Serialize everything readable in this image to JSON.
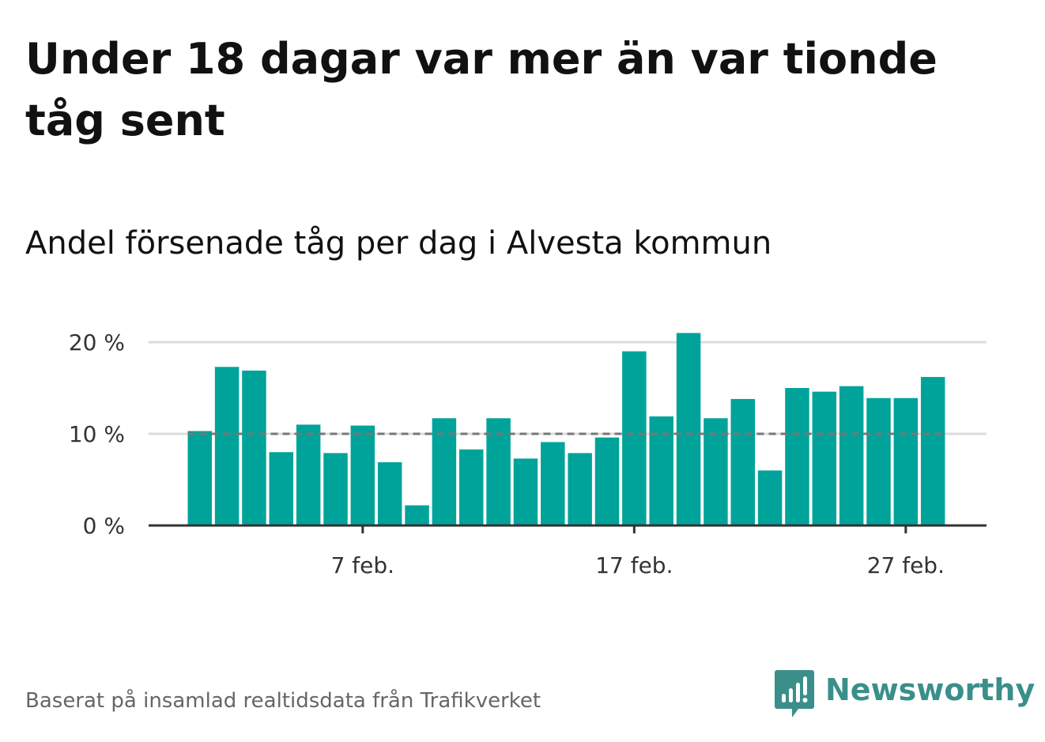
{
  "title": "Under 18 dagar var mer än var tionde tåg sent",
  "subtitle": "Andel försenade tåg per dag i Alvesta kommun",
  "footer": {
    "source_note": "Baserat på insamlad realtidsdata från Trafikverket",
    "brand_name": "Newsworthy"
  },
  "colors": {
    "bar": "#00a39a",
    "reference_line": "#777777",
    "grid": "#dcdcdc",
    "axis": "#333333",
    "brand": "#3a8f8a"
  },
  "chart_data": {
    "type": "bar",
    "title": "Andel försenade tåg per dag i Alvesta kommun",
    "xlabel": "",
    "ylabel": "",
    "ylim": [
      0,
      20
    ],
    "y_ticks": [
      {
        "value": 0,
        "label": "0 %"
      },
      {
        "value": 10,
        "label": "10 %"
      },
      {
        "value": 20,
        "label": "20 %"
      }
    ],
    "x_ticks": [
      {
        "index": 6,
        "label": "7 feb."
      },
      {
        "index": 16,
        "label": "17 feb."
      },
      {
        "index": 26,
        "label": "27 feb."
      }
    ],
    "categories": [
      "1 feb.",
      "2 feb.",
      "3 feb.",
      "4 feb.",
      "5 feb.",
      "6 feb.",
      "7 feb.",
      "8 feb.",
      "9 feb.",
      "10 feb.",
      "11 feb.",
      "12 feb.",
      "13 feb.",
      "14 feb.",
      "15 feb.",
      "16 feb.",
      "17 feb.",
      "18 feb.",
      "19 feb.",
      "20 feb.",
      "21 feb.",
      "22 feb.",
      "23 feb.",
      "24 feb.",
      "25 feb.",
      "26 feb.",
      "27 feb.",
      "28 feb."
    ],
    "values": [
      10.3,
      17.3,
      16.9,
      8.0,
      11.0,
      7.9,
      10.9,
      6.9,
      2.2,
      11.7,
      8.3,
      11.7,
      7.3,
      9.1,
      7.9,
      9.6,
      19.0,
      11.9,
      21.0,
      11.7,
      13.8,
      6.0,
      15.0,
      14.6,
      15.2,
      13.9,
      13.9,
      16.2
    ],
    "reference_line": {
      "value": 10,
      "style": "dashed"
    },
    "grid": true,
    "legend": "none"
  }
}
